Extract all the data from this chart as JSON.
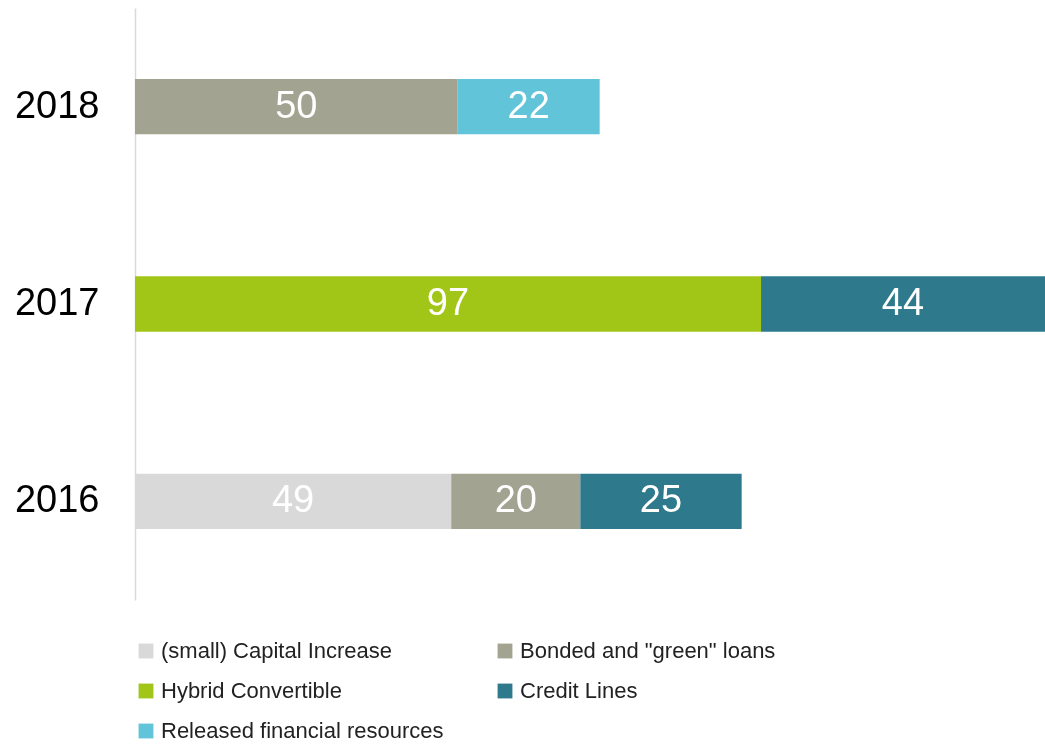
{
  "chart_data": {
    "type": "bar",
    "orientation": "horizontal",
    "stacked": true,
    "data_labels": true,
    "legend": "bottom",
    "categories": [
      "2018",
      "2017",
      "2016"
    ],
    "series": [
      {
        "name": "(small) Capital Increase",
        "color": "#d9d9d9",
        "values": [
          null,
          null,
          49
        ]
      },
      {
        "name": "Bonded and \"green\" loans",
        "color": "#a2a390",
        "values": [
          50,
          null,
          20
        ]
      },
      {
        "name": "Hybrid Convertible",
        "color": "#a2c617",
        "values": [
          null,
          97,
          null
        ]
      },
      {
        "name": "Credit Lines",
        "color": "#2e7a8c",
        "values": [
          null,
          44,
          25
        ]
      },
      {
        "name": "Released financial resources",
        "color": "#62c4d9",
        "values": [
          22,
          null,
          null
        ]
      }
    ]
  }
}
